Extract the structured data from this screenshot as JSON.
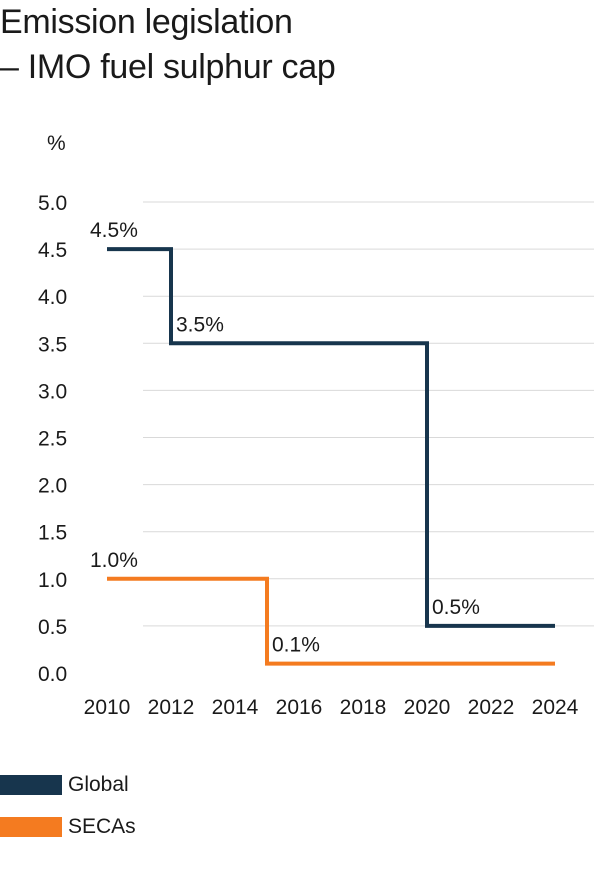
{
  "title": {
    "line1": "Emission legislation",
    "line2": "– IMO fuel sulphur cap"
  },
  "colors": {
    "global": "#17354d",
    "secas": "#f47b20",
    "grid": "#d9d9d9",
    "text": "#1a1a1a"
  },
  "chart_data": {
    "type": "line",
    "step": true,
    "title": "Emission legislation – IMO fuel sulphur cap",
    "ylabel": "%",
    "xlabel": "",
    "xlim": [
      2009,
      2025
    ],
    "ylim": [
      0,
      5.0
    ],
    "xticks": [
      2010,
      2012,
      2014,
      2016,
      2018,
      2020,
      2022,
      2024
    ],
    "yticks": [
      0.0,
      0.5,
      1.0,
      1.5,
      2.0,
      2.5,
      3.0,
      3.5,
      4.0,
      4.5,
      5.0
    ],
    "grid": true,
    "legend_position": "bottom-left",
    "series": [
      {
        "name": "Global",
        "color": "#17354d",
        "points": [
          [
            2010,
            4.5
          ],
          [
            2012,
            4.5
          ],
          [
            2012,
            3.5
          ],
          [
            2020,
            3.5
          ],
          [
            2020,
            0.5
          ],
          [
            2024,
            0.5
          ]
        ],
        "labels": [
          {
            "x": 2010,
            "y": 4.5,
            "text": "4.5%"
          },
          {
            "x": 2012,
            "y": 3.5,
            "text": "3.5%"
          },
          {
            "x": 2020,
            "y": 0.5,
            "text": "0.5%"
          }
        ]
      },
      {
        "name": "SECAs",
        "color": "#f47b20",
        "points": [
          [
            2010,
            1.0
          ],
          [
            2015,
            1.0
          ],
          [
            2015,
            0.1
          ],
          [
            2024,
            0.1
          ]
        ],
        "labels": [
          {
            "x": 2010,
            "y": 1.0,
            "text": "1.0%"
          },
          {
            "x": 2015,
            "y": 0.1,
            "text": "0.1%"
          }
        ]
      }
    ]
  },
  "legend": [
    {
      "name": "Global",
      "color": "#17354d"
    },
    {
      "name": "SECAs",
      "color": "#f47b20"
    }
  ]
}
